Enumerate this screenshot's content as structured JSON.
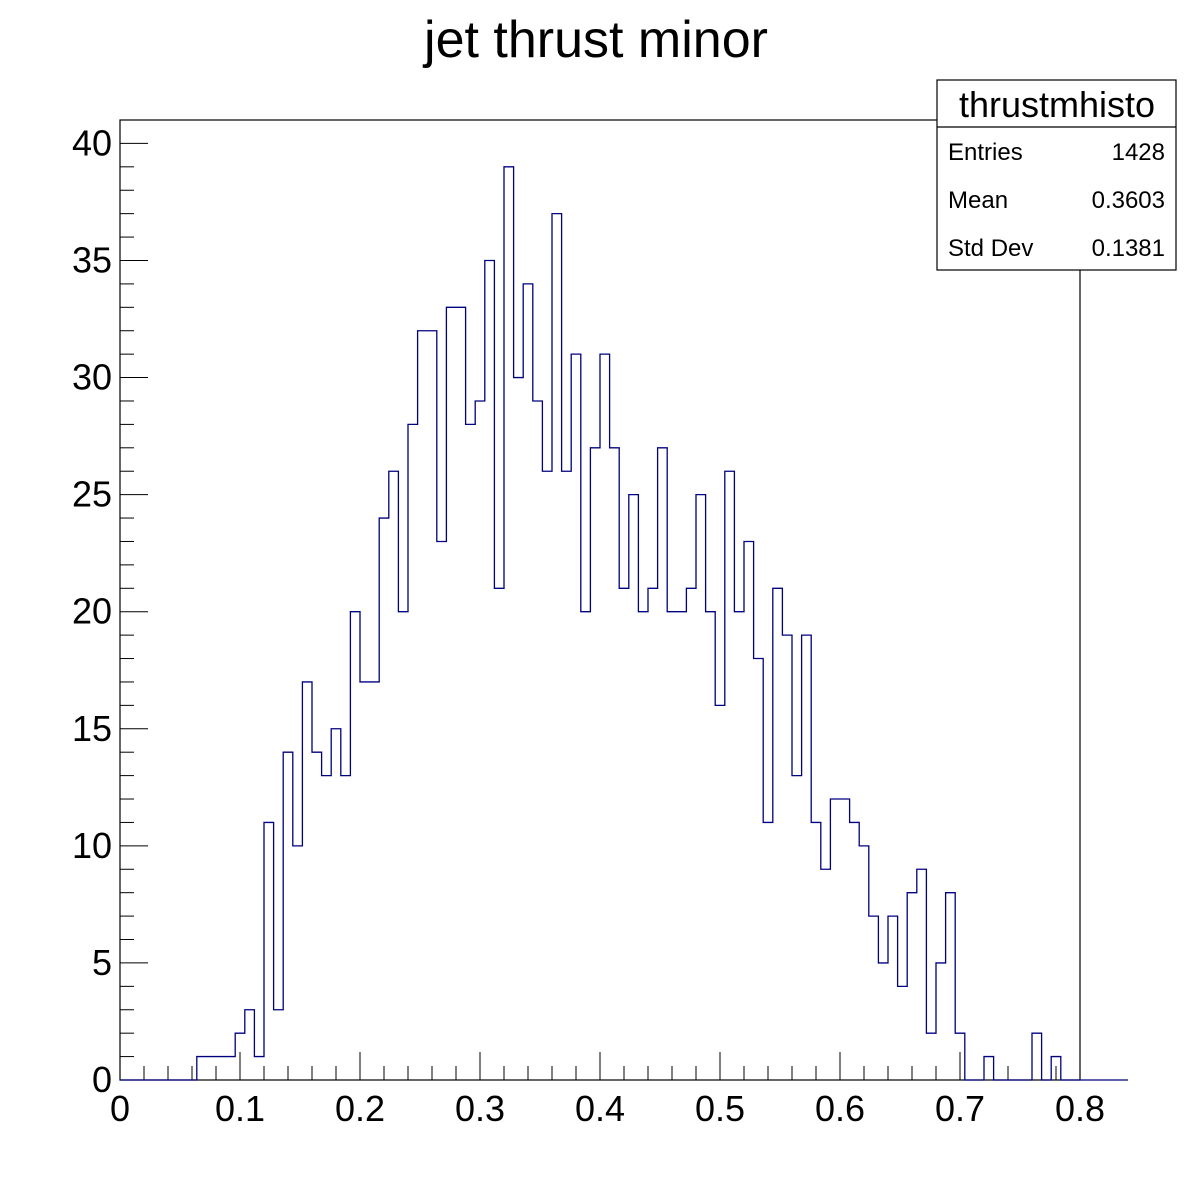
{
  "chart_data": {
    "type": "histogram",
    "title": "jet thrust minor",
    "xlabel": "",
    "ylabel": "",
    "xlim": [
      0,
      0.8
    ],
    "ylim": [
      0,
      41
    ],
    "bin_width": 0.008,
    "x_ticks": [
      "0",
      "0.1",
      "0.2",
      "0.3",
      "0.4",
      "0.5",
      "0.6",
      "0.7",
      "0.8"
    ],
    "y_ticks": [
      "0",
      "5",
      "10",
      "15",
      "20",
      "25",
      "30",
      "35",
      "40"
    ],
    "series": [
      {
        "color": "#000080",
        "values": [
          0,
          0,
          0,
          0,
          0,
          0,
          0,
          0,
          1,
          1,
          1,
          1,
          2,
          3,
          1,
          11,
          3,
          14,
          10,
          17,
          14,
          13,
          15,
          13,
          20,
          17,
          17,
          24,
          26,
          20,
          28,
          32,
          32,
          23,
          33,
          33,
          28,
          29,
          35,
          21,
          39,
          30,
          34,
          29,
          26,
          37,
          26,
          31,
          20,
          27,
          31,
          27,
          21,
          25,
          20,
          21,
          27,
          20,
          20,
          21,
          25,
          20,
          16,
          26,
          20,
          23,
          18,
          11,
          21,
          19,
          13,
          19,
          11,
          9,
          12,
          12,
          11,
          10,
          7,
          5,
          7,
          4,
          8,
          9,
          2,
          5,
          8,
          2,
          0,
          0,
          1,
          0,
          0,
          0,
          0,
          2,
          0,
          1,
          0,
          0,
          0,
          0,
          0,
          0,
          0
        ]
      }
    ],
    "stats_box": {
      "title": "thrustmhisto",
      "rows": [
        {
          "label": "Entries",
          "value": "1428"
        },
        {
          "label": "Mean",
          "value": "0.3603"
        },
        {
          "label": "Std Dev",
          "value": "0.1381"
        }
      ]
    },
    "grid": false,
    "legend_position": "top-right"
  }
}
